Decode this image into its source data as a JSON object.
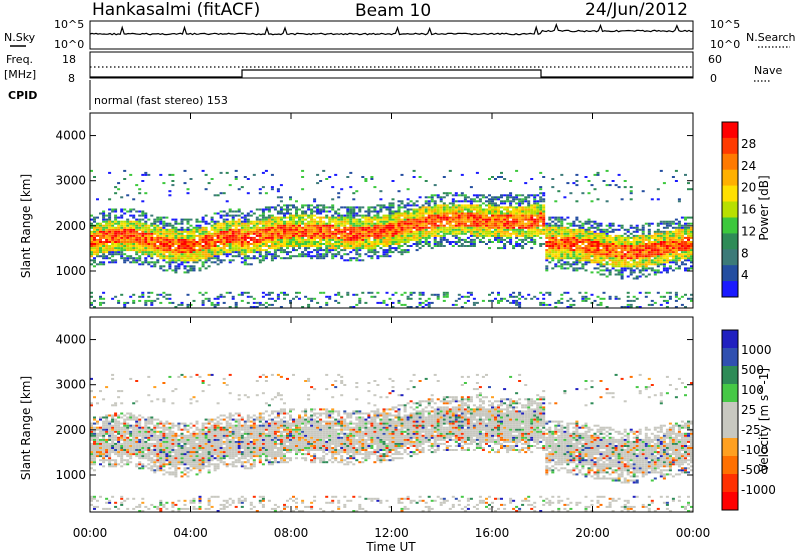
{
  "header": {
    "station": "Hankasalmi (fitACF)",
    "beam": "Beam 10",
    "date": "24/Jun/2012"
  },
  "noise_panel": {
    "left_label": "N.Sky",
    "right_label": "N.Search",
    "left_ticks": [
      "10^5",
      "10^0"
    ],
    "right_ticks": [
      "10^5",
      "10^0"
    ]
  },
  "freq_panel": {
    "left_label_1": "Freq.",
    "left_label_2": "[MHz]",
    "left_ticks": [
      "18",
      "8"
    ],
    "right_label": "Nave",
    "right_ticks": [
      "60",
      "0"
    ],
    "cpid_label": "CPID",
    "cpid_text": "normal (fast stereo) 153"
  },
  "power_colorbar": {
    "title": "Power [dB]",
    "ticks": [
      "28",
      "24",
      "20",
      "16",
      "12",
      "8",
      "4"
    ],
    "colors": [
      "#ff0000",
      "#ff3a00",
      "#ff7a00",
      "#ffb000",
      "#ffe000",
      "#b8e000",
      "#3cc83c",
      "#2e8b57",
      "#3c7a78",
      "#244ea0",
      "#1a1aff"
    ]
  },
  "velocity_colorbar": {
    "title": "Velocity [m s^-1]",
    "ticks": [
      "1000",
      "500",
      "100",
      "25",
      "-25",
      "-100",
      "-500",
      "-1000"
    ],
    "colors": [
      "#2020c0",
      "#3050b0",
      "#2e8b57",
      "#46c846",
      "#c8c8c0",
      "#c8c8c0",
      "#ffa020",
      "#ff7000",
      "#ff3000",
      "#ff0000"
    ]
  },
  "chart_data": {
    "type": "heatmap",
    "ylabel": "Slant Range [km]",
    "xlabel": "Time UT",
    "x_ticks": [
      "00:00",
      "04:00",
      "08:00",
      "12:00",
      "16:00",
      "20:00",
      "00:00"
    ],
    "y_ticks": [
      "1000",
      "2000",
      "3000",
      "4000"
    ],
    "ylim": [
      180,
      4500
    ],
    "xlim_hours": [
      0,
      24
    ],
    "power_bands": [
      {
        "t0": 0,
        "t1": 6,
        "r0": 1400,
        "r1": 2100,
        "level": "high"
      },
      {
        "t0": 6,
        "t1": 12,
        "r0": 1600,
        "r1": 2200,
        "level": "mid"
      },
      {
        "t0": 12,
        "t1": 18,
        "r0": 1800,
        "r1": 2300,
        "level": "mid"
      },
      {
        "t0": 18,
        "t1": 24,
        "r0": 1200,
        "r1": 2000,
        "level": "high"
      }
    ]
  }
}
